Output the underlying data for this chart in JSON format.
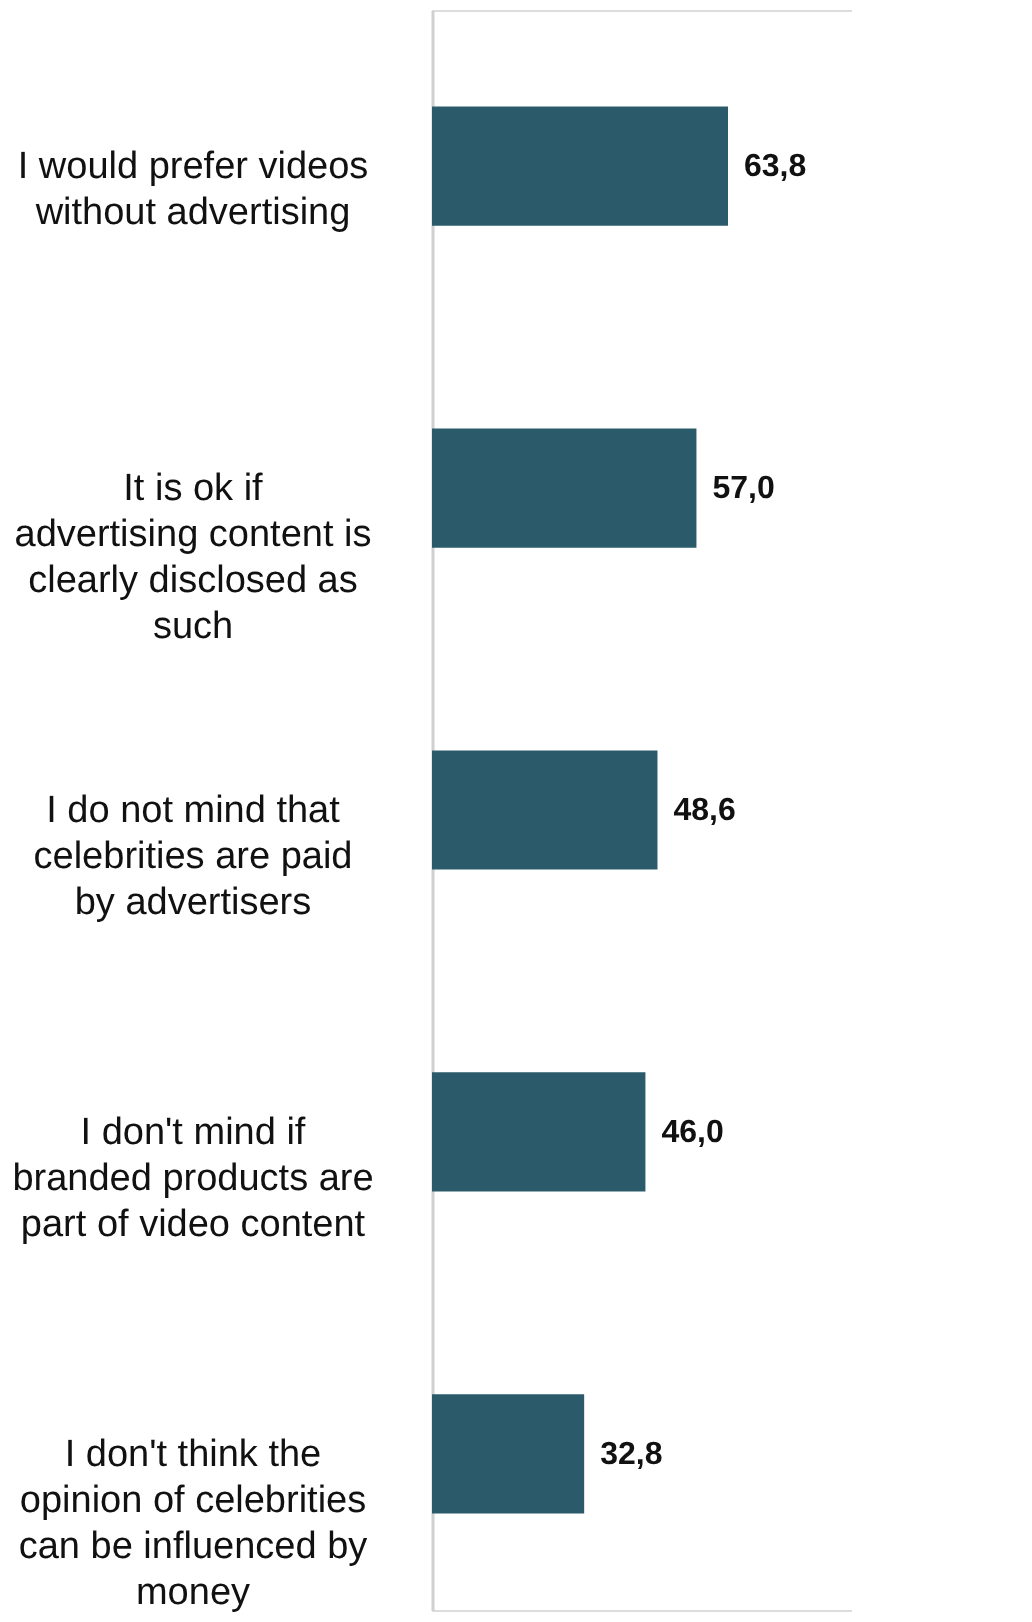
{
  "chart_data": {
    "type": "bar",
    "orientation": "horizontal",
    "value_labels": [
      "63,8",
      "57,0",
      "48,6",
      "46,0",
      "32,8"
    ],
    "color": "#2b5a6b",
    "categories": [
      "I would prefer videos without advertising",
      "It is ok if advertising content is clearly disclosed as such",
      "I do not mind that celebrities are paid by advertisers",
      "I don't mind if branded products are part of video content",
      "I don't think the opinion of celebrities can be influenced by money"
    ],
    "values": [
      63.8,
      57.0,
      48.6,
      46.0,
      32.8
    ]
  }
}
